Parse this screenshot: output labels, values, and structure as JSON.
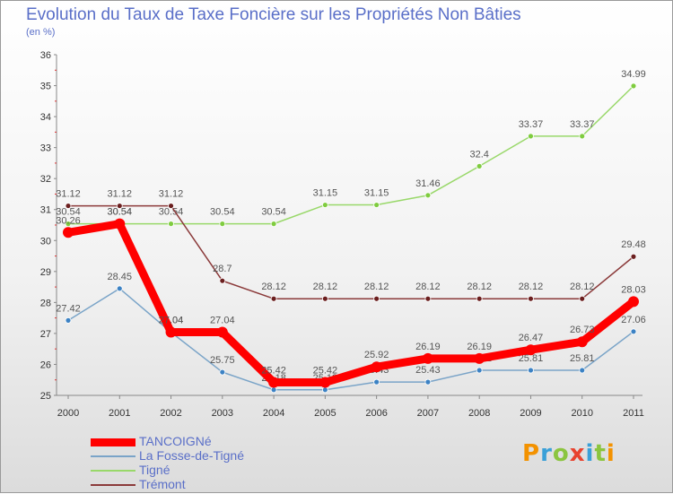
{
  "title": "Evolution du Taux de Taxe Foncière sur les Propriétés Non Bâties",
  "unit_label": "(en %)",
  "logo": {
    "letters": [
      "P",
      "r",
      "o",
      "x",
      "i",
      "t",
      "i"
    ],
    "colors": [
      "#f39200",
      "#3aa0d8",
      "#8bc53f",
      "#e8432f",
      "#3aa0d8",
      "#8bc53f",
      "#f39200"
    ]
  },
  "chart_data": {
    "type": "line",
    "title": "Evolution du Taux de Taxe Foncière sur les Propriétés Non Bâties",
    "ylabel": "(en %)",
    "xlabel": "",
    "ylim": [
      25,
      36
    ],
    "yticks": [
      "25",
      "26",
      "27",
      "28",
      "29",
      "30",
      "31",
      "32",
      "33",
      "34",
      "35",
      "36"
    ],
    "categories": [
      "2000",
      "2001",
      "2002",
      "2003",
      "2004",
      "2005",
      "2006",
      "2007",
      "2008",
      "2009",
      "2010",
      "2011"
    ],
    "series": [
      {
        "name": "Tigné",
        "color": "#99d86a",
        "marker": "#7fcc3f",
        "width": 1.5,
        "marker_r": 3,
        "values": [
          30.54,
          30.54,
          30.54,
          30.54,
          30.54,
          31.15,
          31.15,
          31.46,
          32.4,
          33.37,
          33.37,
          34.99
        ],
        "labels": [
          "30.54",
          "30.54",
          "30.54",
          "30.54",
          "30.54",
          "31.15",
          "31.15",
          "31.46",
          "32.4",
          "33.37",
          "33.37",
          "34.99"
        ]
      },
      {
        "name": "Trémont",
        "color": "#8b3a3a",
        "marker": "#6b1f1f",
        "width": 1.5,
        "marker_r": 3,
        "values": [
          31.12,
          31.12,
          31.12,
          28.7,
          28.12,
          28.12,
          28.12,
          28.12,
          28.12,
          28.12,
          28.12,
          29.48
        ],
        "labels": [
          "31.12",
          "31.12",
          "31.12",
          "28.7",
          "28.12",
          "28.12",
          "28.12",
          "28.12",
          "28.12",
          "28.12",
          "28.12",
          "29.48"
        ]
      },
      {
        "name": "La Fosse-de-Tigné",
        "color": "#7aa4c8",
        "marker": "#3c82c4",
        "width": 1.5,
        "marker_r": 3,
        "values": [
          27.42,
          28.45,
          27.04,
          25.75,
          25.18,
          25.18,
          25.43,
          25.43,
          25.81,
          25.81,
          25.81,
          27.06
        ],
        "labels": [
          "27.42",
          "28.45",
          "27.04",
          "25.75",
          "25.18",
          "25.18",
          "25.43",
          "25.43",
          "25.81",
          "25.81",
          "25.81",
          "27.06"
        ]
      },
      {
        "name": "TANCOIGNé",
        "color": "#ff0000",
        "marker": "#ff0000",
        "width": 9,
        "marker_r": 6,
        "values": [
          30.26,
          30.54,
          27.04,
          27.04,
          25.42,
          25.42,
          25.92,
          26.19,
          26.19,
          26.47,
          26.73,
          28.03
        ],
        "labels": [
          "30.26",
          "30.54",
          "27.04",
          "27.04",
          "25.42",
          "25.42",
          "25.92",
          "26.19",
          "26.19",
          "26.47",
          "26.73",
          "28.03"
        ]
      }
    ],
    "legend": [
      "TANCOIGNé",
      "La Fosse-de-Tigné",
      "Tigné",
      "Trémont"
    ],
    "legend_position": "bottom-left",
    "grid": false
  }
}
